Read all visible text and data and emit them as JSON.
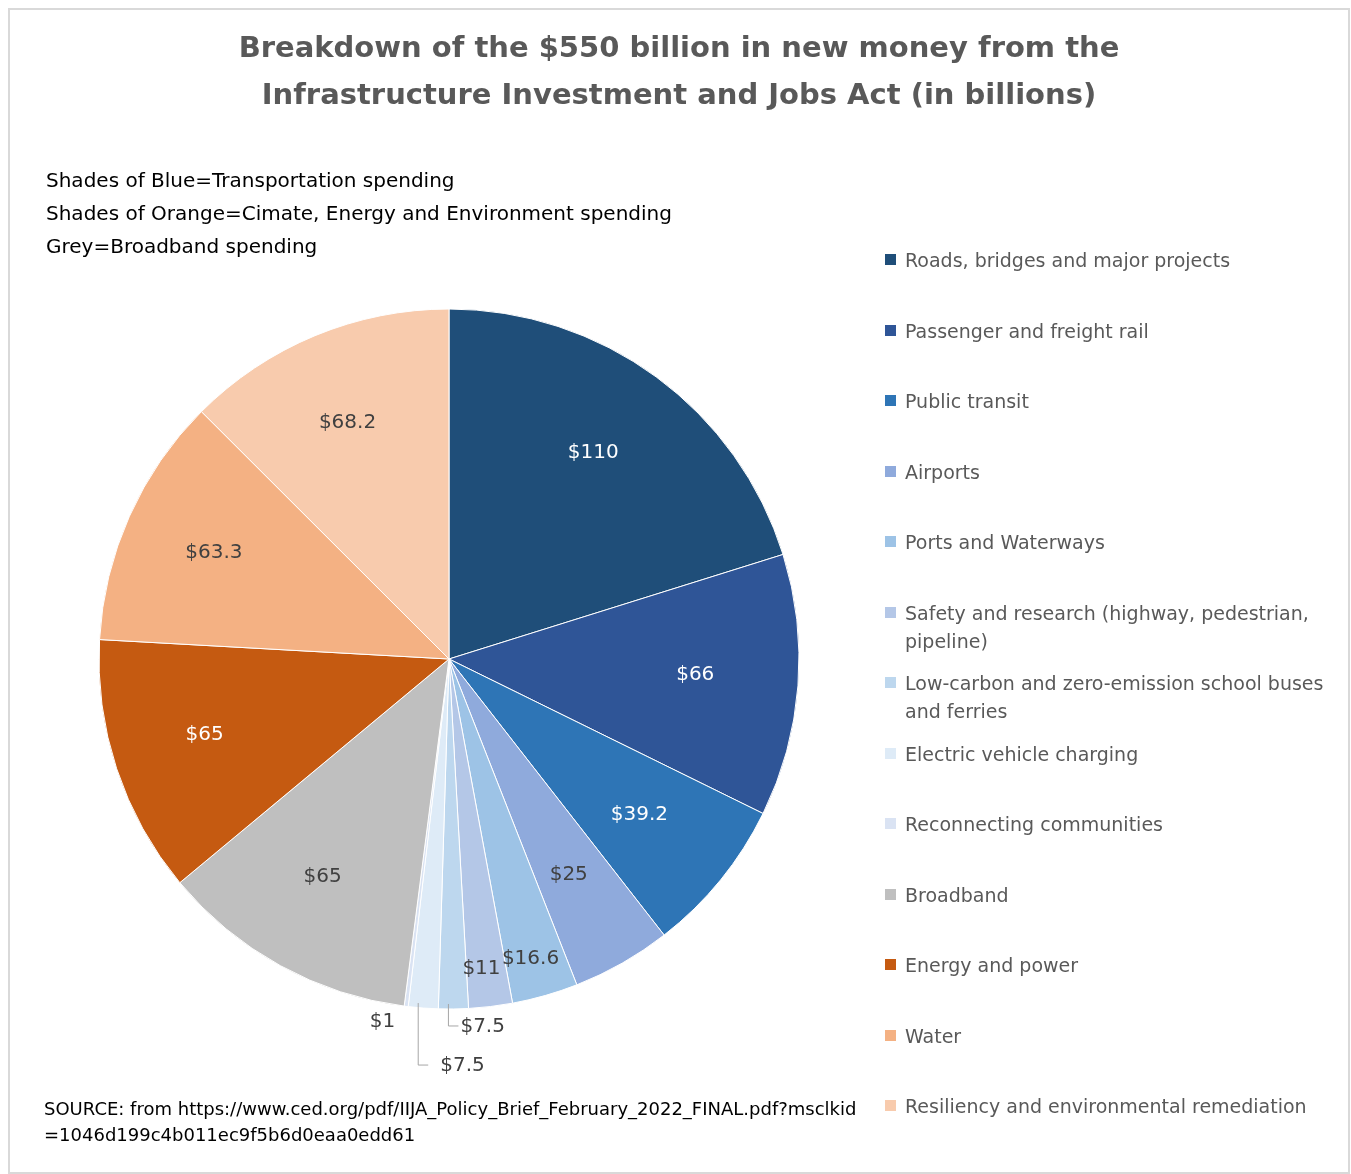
{
  "chart_data": {
    "type": "pie",
    "title": "Breakdown of the $550 billion in new money from the Infrastructure Investment and Jobs Act (in billions)",
    "categories": [
      "Roads, bridges and major projects",
      "Passenger and freight rail",
      "Public transit",
      "Airports",
      "Ports and Waterways",
      "Safety and research (highway, pedestrian, pipeline)",
      "Low-carbon and zero-emission school buses and ferries",
      "Electric vehicle charging",
      "Reconnecting communities",
      "Broadband",
      "Energy and power",
      "Water",
      "Resiliency and environmental remediation"
    ],
    "values": [
      110,
      66,
      39.2,
      25,
      16.6,
      11,
      7.5,
      7.5,
      1,
      65,
      65,
      63.3,
      68.2
    ],
    "value_labels": [
      "$110",
      "$66",
      "$39.2",
      "$25",
      "$16.6",
      "$11",
      "$7.5",
      "$7.5",
      "$1",
      "$65",
      "$65",
      "$63.3",
      "$68.2"
    ],
    "colors": [
      "#1f4e79",
      "#2f5597",
      "#2e75b6",
      "#8faadc",
      "#9dc3e6",
      "#b4c7e7",
      "#bdd7ee",
      "#deebf7",
      "#dae3f3",
      "#bfbfbf",
      "#c55a11",
      "#f4b183",
      "#f8cbad"
    ],
    "legend": "right",
    "annotations": [
      "Shades of Blue=Transportation spending",
      "Shades of Orange=Cimate, Energy and Environment spending",
      "Grey=Broadband spending",
      "SOURCE: from https://www.ced.org/pdf/IIJA_Policy_Brief_February_2022_FINAL.pdf?msclkid=1046d199c4b011ec9f5b6d0eaa0edd61"
    ]
  }
}
